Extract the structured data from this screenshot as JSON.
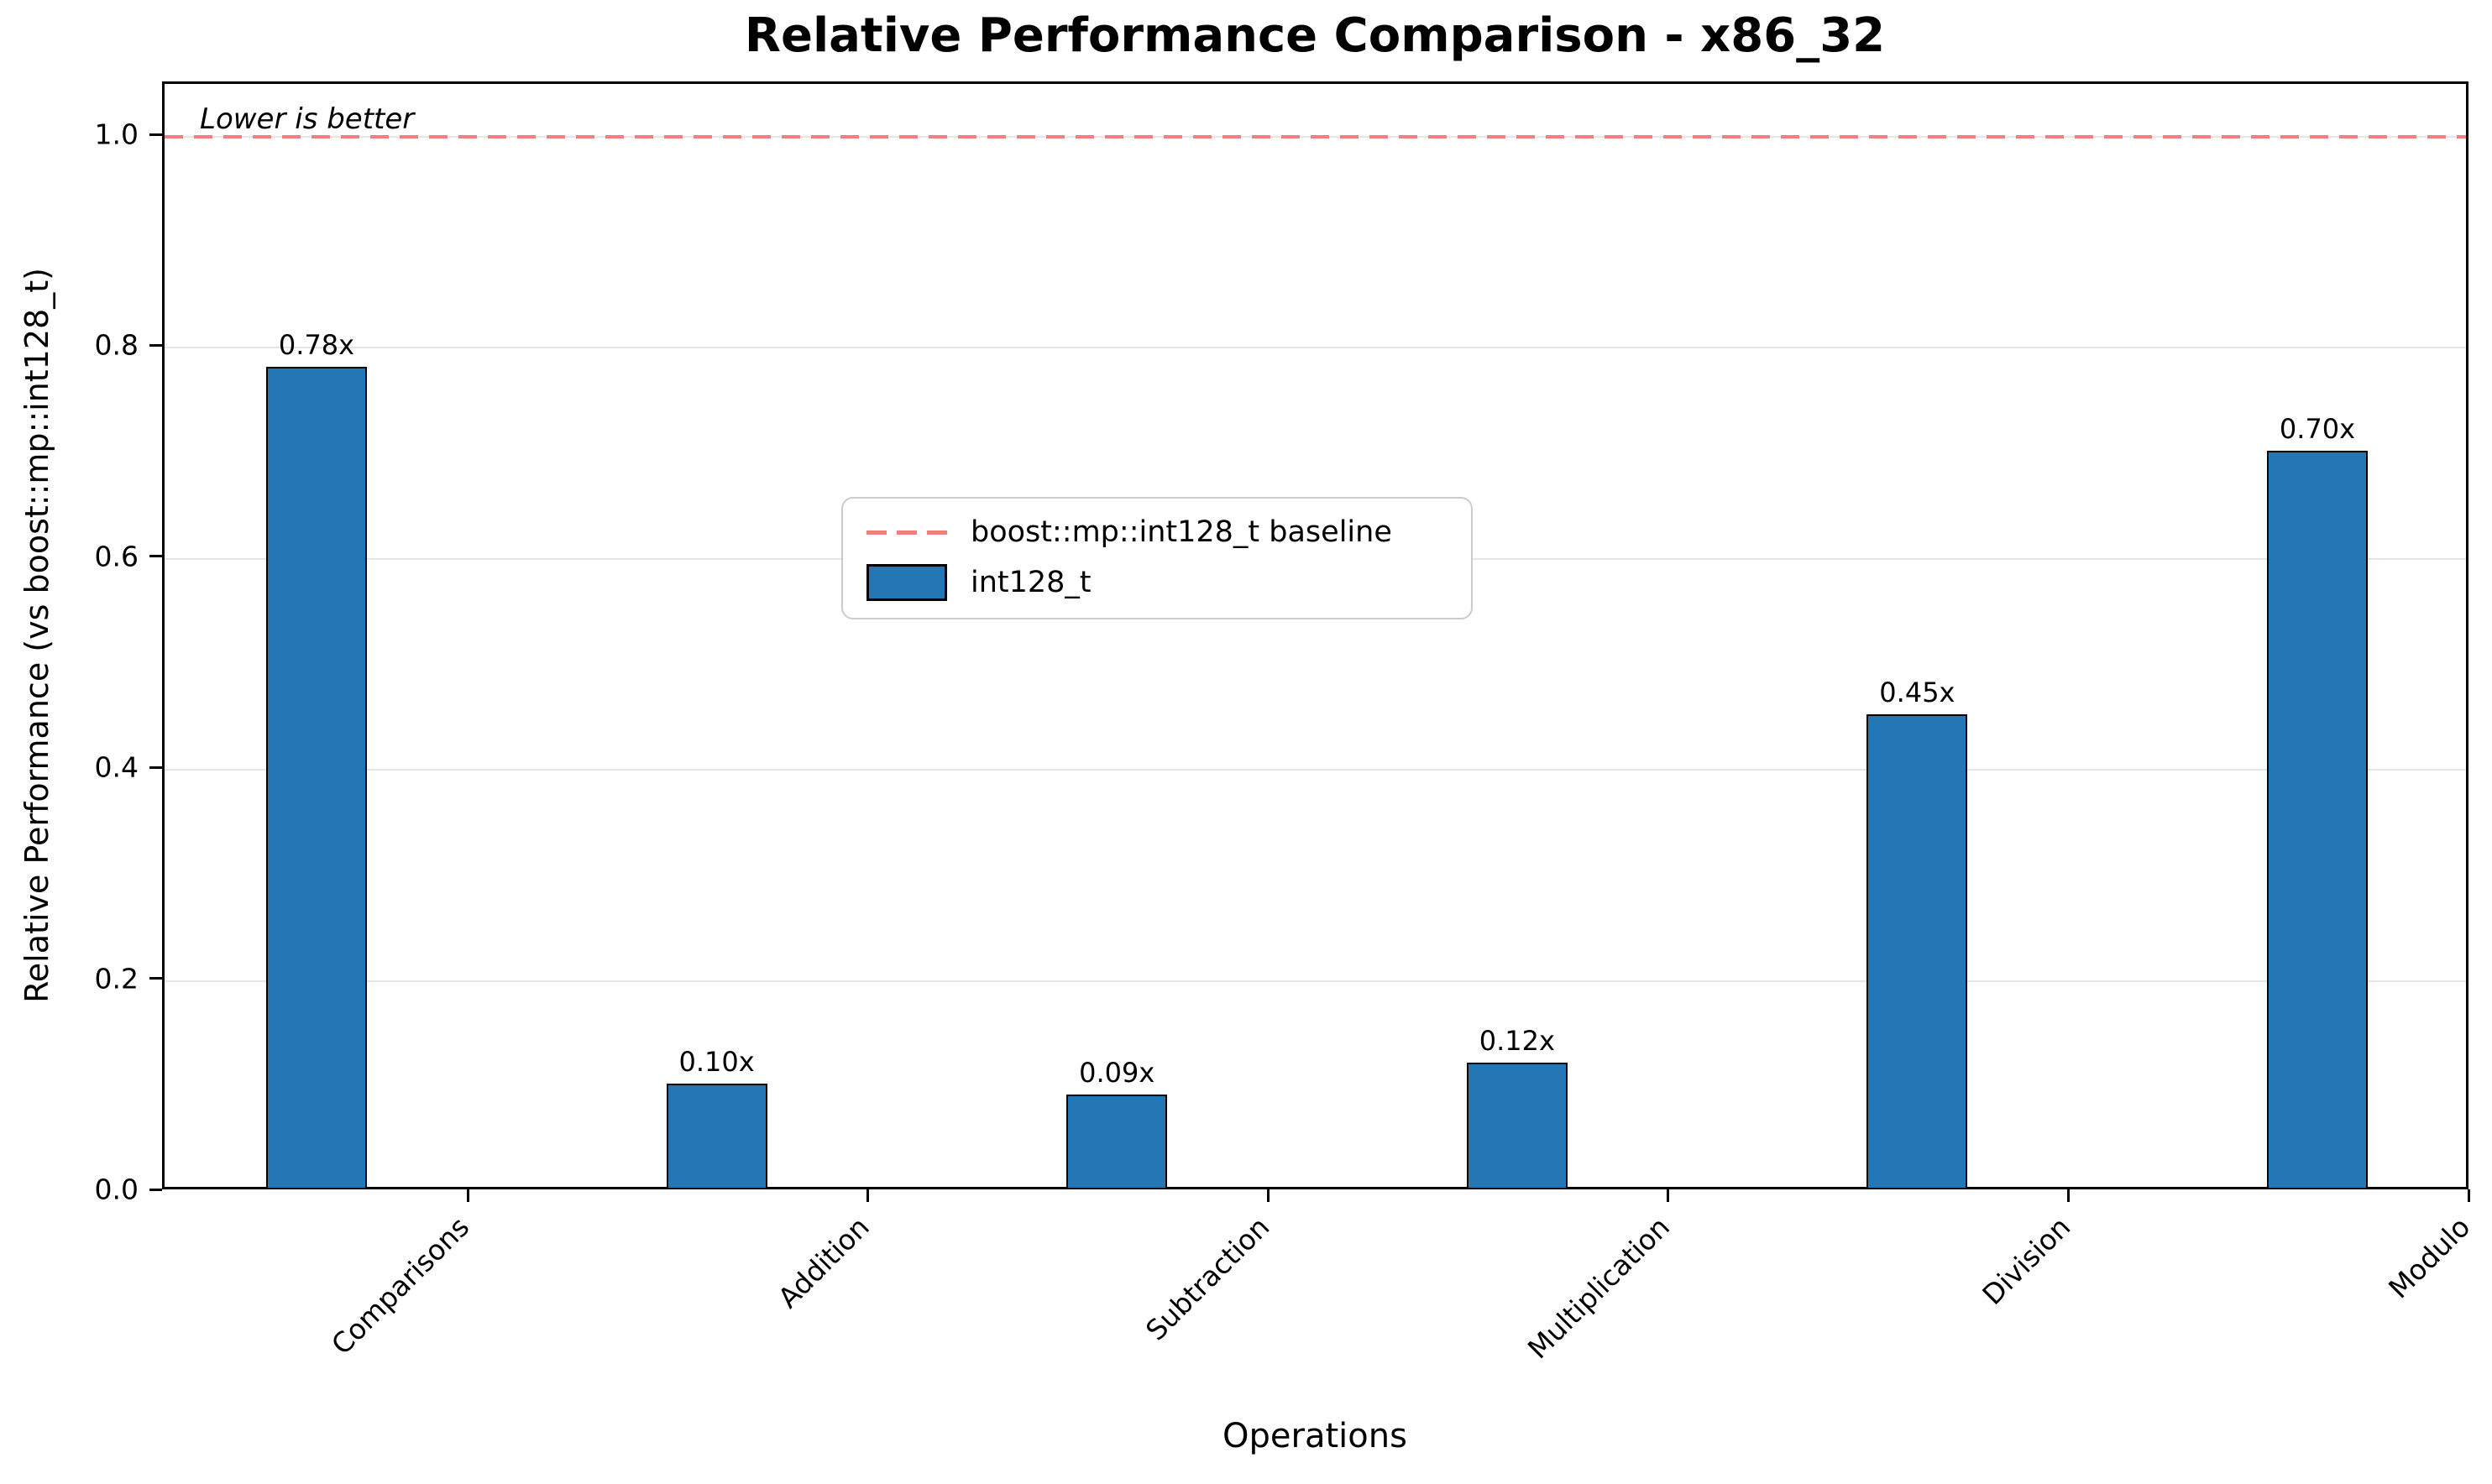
{
  "chart_data": {
    "type": "bar",
    "title": "Relative Performance Comparison - x86_32",
    "xlabel": "Operations",
    "ylabel": "Relative Performance (vs boost::mp::int128_t)",
    "categories": [
      "Comparisons",
      "Addition",
      "Subtraction",
      "Multiplication",
      "Division",
      "Modulo"
    ],
    "series": [
      {
        "name": "int128_t",
        "values": [
          0.78,
          0.1,
          0.09,
          0.12,
          0.45,
          0.7
        ]
      }
    ],
    "bar_labels": [
      "0.78x",
      "0.10x",
      "0.09x",
      "0.12x",
      "0.45x",
      "0.70x"
    ],
    "baseline": {
      "value": 1.0,
      "label": "boost::mp::int128_t baseline",
      "color": "#f47d7d"
    },
    "annotation": "Lower is better",
    "ylim": [
      0.0,
      1.05
    ],
    "yticks": [
      0.0,
      0.2,
      0.4,
      0.6,
      0.8,
      1.0
    ],
    "grid": "horizontal",
    "grid_color": "#e5e5e5",
    "bar_color": "#2277b4",
    "legend": {
      "position": "center",
      "entries": [
        {
          "label": "boost::mp::int128_t baseline",
          "marker": "dashed-line"
        },
        {
          "label": "int128_t",
          "marker": "filled-box"
        }
      ]
    }
  }
}
